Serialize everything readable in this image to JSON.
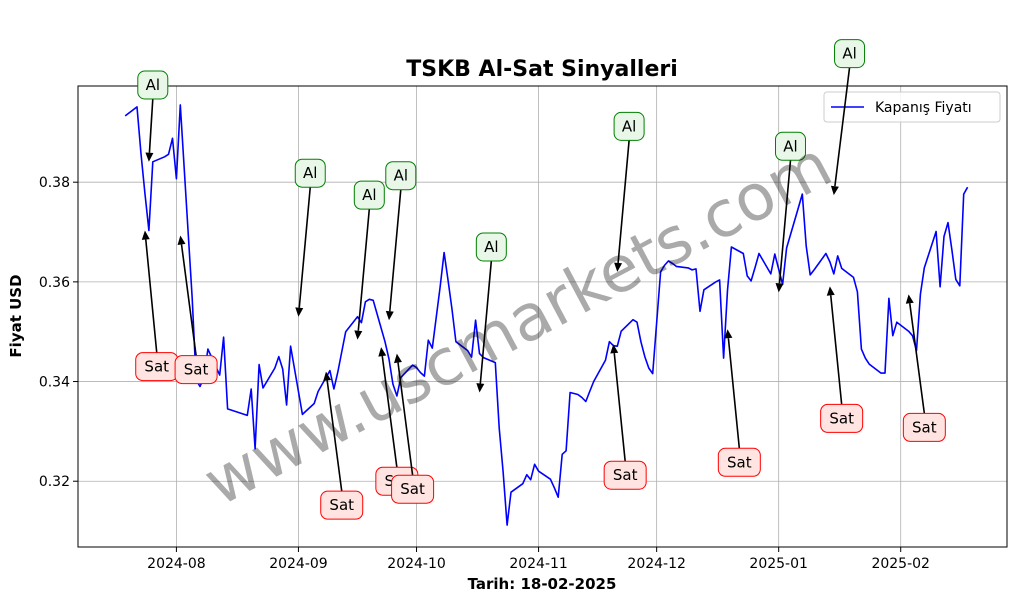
{
  "chart_data": {
    "type": "line",
    "title": "TSKB Al-Sat Sinyalleri",
    "xlabel": "Tarih: 18-02-2025",
    "ylabel": "Fiyat USD",
    "x_range": [
      "2024-07-07",
      "2025-02-28"
    ],
    "ylim": [
      0.3068,
      0.3993
    ],
    "grid": true,
    "legend_position": "top-right",
    "x_ticks": [
      {
        "date": "2024-08-01",
        "label": "2024-08"
      },
      {
        "date": "2024-09-01",
        "label": "2024-09"
      },
      {
        "date": "2024-10-01",
        "label": "2024-10"
      },
      {
        "date": "2024-11-01",
        "label": "2024-11"
      },
      {
        "date": "2024-12-01",
        "label": "2024-12"
      },
      {
        "date": "2025-01-01",
        "label": "2025-01"
      },
      {
        "date": "2025-02-01",
        "label": "2025-02"
      }
    ],
    "y_ticks": [
      {
        "value": 0.32,
        "label": "0.32"
      },
      {
        "value": 0.34,
        "label": "0.34"
      },
      {
        "value": 0.36,
        "label": "0.36"
      },
      {
        "value": 0.38,
        "label": "0.38"
      }
    ],
    "series": [
      {
        "name": "Kapanış Fiyatı",
        "color": "#0000ff",
        "points": [
          [
            "2024-07-19",
            0.3933
          ],
          [
            "2024-07-22",
            0.3951
          ],
          [
            "2024-07-23",
            0.3857
          ],
          [
            "2024-07-24",
            0.3778
          ],
          [
            "2024-07-25",
            0.3703
          ],
          [
            "2024-07-26",
            0.3841
          ],
          [
            "2024-07-29",
            0.3851
          ],
          [
            "2024-07-30",
            0.3856
          ],
          [
            "2024-07-31",
            0.3888
          ],
          [
            "2024-08-01",
            0.3807
          ],
          [
            "2024-08-02",
            0.3955
          ],
          [
            "2024-08-05",
            0.3567
          ],
          [
            "2024-08-06",
            0.3403
          ],
          [
            "2024-08-07",
            0.339
          ],
          [
            "2024-08-08",
            0.3409
          ],
          [
            "2024-08-09",
            0.3465
          ],
          [
            "2024-08-12",
            0.3413
          ],
          [
            "2024-08-13",
            0.3489
          ],
          [
            "2024-08-14",
            0.3345
          ],
          [
            "2024-08-19",
            0.3332
          ],
          [
            "2024-08-20",
            0.3385
          ],
          [
            "2024-08-21",
            0.3265
          ],
          [
            "2024-08-22",
            0.3434
          ],
          [
            "2024-08-23",
            0.3387
          ],
          [
            "2024-08-26",
            0.3427
          ],
          [
            "2024-08-27",
            0.345
          ],
          [
            "2024-08-28",
            0.3425
          ],
          [
            "2024-08-29",
            0.3353
          ],
          [
            "2024-08-30",
            0.3471
          ],
          [
            "2024-09-02",
            0.3334
          ],
          [
            "2024-09-05",
            0.3356
          ],
          [
            "2024-09-06",
            0.338
          ],
          [
            "2024-09-09",
            0.3422
          ],
          [
            "2024-09-10",
            0.3385
          ],
          [
            "2024-09-11",
            0.3419
          ],
          [
            "2024-09-12",
            0.3459
          ],
          [
            "2024-09-13",
            0.35
          ],
          [
            "2024-09-16",
            0.353
          ],
          [
            "2024-09-17",
            0.3518
          ],
          [
            "2024-09-18",
            0.356
          ],
          [
            "2024-09-19",
            0.3565
          ],
          [
            "2024-09-20",
            0.3563
          ],
          [
            "2024-09-23",
            0.348
          ],
          [
            "2024-09-24",
            0.3445
          ],
          [
            "2024-09-25",
            0.3395
          ],
          [
            "2024-09-26",
            0.3371
          ],
          [
            "2024-09-27",
            0.3408
          ],
          [
            "2024-09-30",
            0.3433
          ],
          [
            "2024-10-01",
            0.3428
          ],
          [
            "2024-10-02",
            0.3418
          ],
          [
            "2024-10-03",
            0.3411
          ],
          [
            "2024-10-04",
            0.3483
          ],
          [
            "2024-10-05",
            0.3467
          ],
          [
            "2024-10-07",
            0.3591
          ],
          [
            "2024-10-08",
            0.3659
          ],
          [
            "2024-10-09",
            0.3604
          ],
          [
            "2024-10-10",
            0.3545
          ],
          [
            "2024-10-11",
            0.348
          ],
          [
            "2024-10-14",
            0.3462
          ],
          [
            "2024-10-15",
            0.3449
          ],
          [
            "2024-10-16",
            0.3523
          ],
          [
            "2024-10-17",
            0.3456
          ],
          [
            "2024-10-18",
            0.3448
          ],
          [
            "2024-10-21",
            0.3438
          ],
          [
            "2024-10-22",
            0.3307
          ],
          [
            "2024-10-23",
            0.3219
          ],
          [
            "2024-10-24",
            0.3112
          ],
          [
            "2024-10-25",
            0.3178
          ],
          [
            "2024-10-28",
            0.3195
          ],
          [
            "2024-10-29",
            0.3213
          ],
          [
            "2024-10-30",
            0.3203
          ],
          [
            "2024-10-31",
            0.3234
          ],
          [
            "2024-11-01",
            0.322
          ],
          [
            "2024-11-04",
            0.3204
          ],
          [
            "2024-11-05",
            0.3187
          ],
          [
            "2024-11-06",
            0.3168
          ],
          [
            "2024-11-07",
            0.3254
          ],
          [
            "2024-11-08",
            0.3261
          ],
          [
            "2024-11-09",
            0.3378
          ],
          [
            "2024-11-11",
            0.3374
          ],
          [
            "2024-11-12",
            0.3368
          ],
          [
            "2024-11-13",
            0.336
          ],
          [
            "2024-11-14",
            0.338
          ],
          [
            "2024-11-15",
            0.34
          ],
          [
            "2024-11-18",
            0.3443
          ],
          [
            "2024-11-19",
            0.348
          ],
          [
            "2024-11-20",
            0.3472
          ],
          [
            "2024-11-21",
            0.3471
          ],
          [
            "2024-11-22",
            0.3501
          ],
          [
            "2024-11-25",
            0.3524
          ],
          [
            "2024-11-26",
            0.3519
          ],
          [
            "2024-11-27",
            0.348
          ],
          [
            "2024-11-28",
            0.345
          ],
          [
            "2024-11-29",
            0.3427
          ],
          [
            "2024-11-30",
            0.3416
          ],
          [
            "2024-12-02",
            0.362
          ],
          [
            "2024-12-03",
            0.3633
          ],
          [
            "2024-12-04",
            0.3642
          ],
          [
            "2024-12-05",
            0.3637
          ],
          [
            "2024-12-06",
            0.3631
          ],
          [
            "2024-12-09",
            0.3628
          ],
          [
            "2024-12-10",
            0.3624
          ],
          [
            "2024-12-11",
            0.3626
          ],
          [
            "2024-12-12",
            0.3541
          ],
          [
            "2024-12-13",
            0.3584
          ],
          [
            "2024-12-16",
            0.36
          ],
          [
            "2024-12-17",
            0.3604
          ],
          [
            "2024-12-18",
            0.3447
          ],
          [
            "2024-12-19",
            0.3583
          ],
          [
            "2024-12-20",
            0.367
          ],
          [
            "2024-12-23",
            0.3657
          ],
          [
            "2024-12-24",
            0.3612
          ],
          [
            "2024-12-25",
            0.3602
          ],
          [
            "2024-12-26",
            0.3629
          ],
          [
            "2024-12-27",
            0.3657
          ],
          [
            "2024-12-30",
            0.3616
          ],
          [
            "2024-12-31",
            0.3656
          ],
          [
            "2025-01-02",
            0.3595
          ],
          [
            "2025-01-03",
            0.3668
          ],
          [
            "2025-01-06",
            0.3749
          ],
          [
            "2025-01-07",
            0.3776
          ],
          [
            "2025-01-08",
            0.3672
          ],
          [
            "2025-01-09",
            0.3614
          ],
          [
            "2025-01-10",
            0.3624
          ],
          [
            "2025-01-13",
            0.3657
          ],
          [
            "2025-01-14",
            0.364
          ],
          [
            "2025-01-15",
            0.3616
          ],
          [
            "2025-01-16",
            0.3652
          ],
          [
            "2025-01-17",
            0.3627
          ],
          [
            "2025-01-20",
            0.3609
          ],
          [
            "2025-01-21",
            0.358
          ],
          [
            "2025-01-22",
            0.3465
          ],
          [
            "2025-01-23",
            0.3447
          ],
          [
            "2025-01-24",
            0.3435
          ],
          [
            "2025-01-27",
            0.3417
          ],
          [
            "2025-01-28",
            0.3417
          ],
          [
            "2025-01-29",
            0.3567
          ],
          [
            "2025-01-30",
            0.3492
          ],
          [
            "2025-01-31",
            0.3519
          ],
          [
            "2025-02-03",
            0.3501
          ],
          [
            "2025-02-04",
            0.3492
          ],
          [
            "2025-02-05",
            0.3462
          ],
          [
            "2025-02-06",
            0.3575
          ],
          [
            "2025-02-07",
            0.3628
          ],
          [
            "2025-02-10",
            0.3701
          ],
          [
            "2025-02-11",
            0.359
          ],
          [
            "2025-02-12",
            0.3691
          ],
          [
            "2025-02-13",
            0.3719
          ],
          [
            "2025-02-14",
            0.3664
          ],
          [
            "2025-02-15",
            0.3605
          ],
          [
            "2025-02-16",
            0.3592
          ],
          [
            "2025-02-17",
            0.3776
          ],
          [
            "2025-02-18",
            0.379
          ]
        ]
      }
    ],
    "signals": [
      {
        "label": "Al",
        "kind": "al",
        "point": [
          "2024-07-25",
          0.3841
        ],
        "box": [
          "2024-07-26",
          0.3995
        ]
      },
      {
        "label": "Sat",
        "kind": "sat",
        "point": [
          "2024-07-24",
          0.3703
        ],
        "box": [
          "2024-07-27",
          0.343
        ]
      },
      {
        "label": "Sat",
        "kind": "sat",
        "point": [
          "2024-08-02",
          0.3693
        ],
        "box": [
          "2024-08-06",
          0.3424
        ]
      },
      {
        "label": "Al",
        "kind": "al",
        "point": [
          "2024-09-01",
          0.353
        ],
        "box": [
          "2024-09-04",
          0.3818
        ]
      },
      {
        "label": "Sat",
        "kind": "sat",
        "point": [
          "2024-09-08",
          0.342
        ],
        "box": [
          "2024-09-12",
          0.3152
        ]
      },
      {
        "label": "Al",
        "kind": "al",
        "point": [
          "2024-09-16",
          0.3484
        ],
        "box": [
          "2024-09-19",
          0.3774
        ]
      },
      {
        "label": "Sat",
        "kind": "sat",
        "point": [
          "2024-09-22",
          0.3469
        ],
        "box": [
          "2024-09-26",
          0.32
        ]
      },
      {
        "label": "Al",
        "kind": "al",
        "point": [
          "2024-09-24",
          0.3523
        ],
        "box": [
          "2024-09-27",
          0.3813
        ]
      },
      {
        "label": "Sat",
        "kind": "sat",
        "point": [
          "2024-09-26",
          0.3456
        ],
        "box": [
          "2024-09-30",
          0.3184
        ]
      },
      {
        "label": "Al",
        "kind": "al",
        "point": [
          "2024-10-17",
          0.3378
        ],
        "box": [
          "2024-10-20",
          0.367
        ]
      },
      {
        "label": "Sat",
        "kind": "sat",
        "point": [
          "2024-11-20",
          0.3475
        ],
        "box": [
          "2024-11-23",
          0.3212
        ]
      },
      {
        "label": "Al",
        "kind": "al",
        "point": [
          "2024-11-21",
          0.362
        ],
        "box": [
          "2024-11-24",
          0.3912
        ]
      },
      {
        "label": "Sat",
        "kind": "sat",
        "point": [
          "2024-12-19",
          0.3505
        ],
        "box": [
          "2024-12-22",
          0.3238
        ]
      },
      {
        "label": "Al",
        "kind": "al",
        "point": [
          "2025-01-01",
          0.3579
        ],
        "box": [
          "2025-01-04",
          0.3872
        ]
      },
      {
        "label": "Sat",
        "kind": "sat",
        "point": [
          "2025-01-14",
          0.3591
        ],
        "box": [
          "2025-01-17",
          0.3326
        ]
      },
      {
        "label": "Al",
        "kind": "al",
        "point": [
          "2025-01-15",
          0.3774
        ],
        "box": [
          "2025-01-19",
          0.4058
        ]
      },
      {
        "label": "Sat",
        "kind": "sat",
        "point": [
          "2025-02-03",
          0.3575
        ],
        "box": [
          "2025-02-07",
          0.3308
        ]
      }
    ]
  },
  "watermark": "www.uscmarkets.com"
}
